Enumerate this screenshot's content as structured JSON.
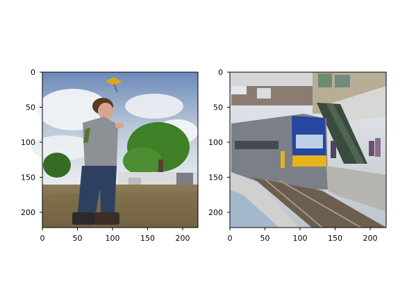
{
  "figure": {
    "panels": [
      {
        "id": "left",
        "image_description_tag": "boy-flying-kite",
        "x_ticks": [
          "0",
          "50",
          "100",
          "150",
          "200"
        ],
        "y_ticks": [
          "0",
          "50",
          "100",
          "150",
          "200"
        ],
        "colors": {
          "sky_top": "#6b89b9",
          "sky_mid": "#c7d2de",
          "cloud": "#eef1f4",
          "tree": "#3d7e24",
          "ground": "#8a7a55",
          "shirt": "#8d9094",
          "jeans": "#2e405f",
          "skin": "#d8a58e",
          "hair": "#5a3a22"
        }
      },
      {
        "id": "right",
        "image_description_tag": "train-at-station",
        "x_ticks": [
          "0",
          "50",
          "100",
          "150",
          "200"
        ],
        "y_ticks": [
          "0",
          "50",
          "100",
          "150",
          "200"
        ],
        "colors": {
          "sky": "#d9dde3",
          "train_body": "#7b7f87",
          "train_front": "#2746a0",
          "train_yellow": "#e5b31b",
          "platform": "#c9c9c9",
          "tracks": "#6c5e4f",
          "canopy": "#b8ad95",
          "bridge": "#7d6f66",
          "stairs": "#3b4a3f"
        }
      }
    ]
  }
}
